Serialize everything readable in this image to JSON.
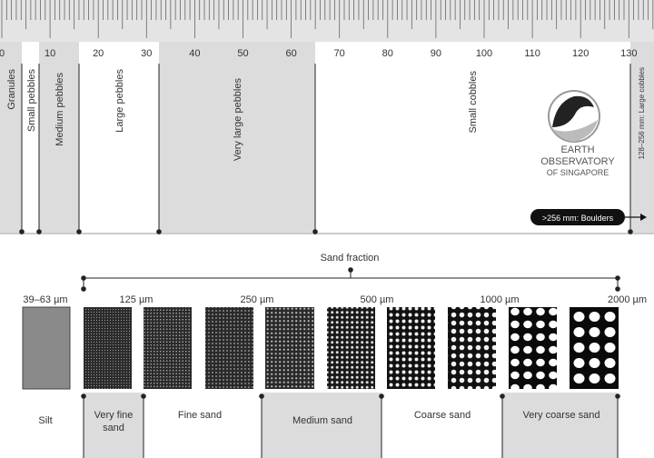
{
  "ruler": {
    "labels": [
      "0",
      "10",
      "20",
      "30",
      "40",
      "50",
      "60",
      "70",
      "80",
      "90",
      "100",
      "110",
      "120",
      "130"
    ]
  },
  "gravel_classes": [
    "Granules",
    "Small pebbles",
    "Medium pebbles",
    "Large pebbles",
    "Very large pebbles",
    "Small cobbles",
    "128–256 mm: Large cobbles"
  ],
  "logo": {
    "line1": "EARTH",
    "line2": "OBSERVATORY",
    "line3": "OF SINGAPORE"
  },
  "boulders": ">256 mm: Boulders",
  "sand": {
    "title": "Sand fraction",
    "sizes": [
      "39–63 µm",
      "125 µm",
      "250 µm",
      "500 µm",
      "1000 µm",
      "2000 µm"
    ],
    "classes": [
      "Silt",
      "Very fine sand",
      "Fine sand",
      "Medium sand",
      "Coarse sand",
      "Very coarse sand"
    ]
  }
}
